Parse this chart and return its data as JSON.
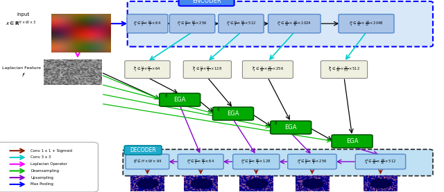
{
  "fig_width": 6.4,
  "fig_height": 2.78,
  "dpi": 100,
  "bg_color": "#ffffff",
  "encoder_box_color": "#aac4e8",
  "encoder_border_color": "#0000ff",
  "ega_color": "#00aa00",
  "decoder_box_color": "#aad4f0",
  "conv1x1_color": "#8b1a00",
  "conv3x3_color": "#00cccc",
  "laplacian_color": "#ff00ff",
  "downsampling_color": "#00bb00",
  "upsampling_color": "#8800cc",
  "maxpooling_color": "#0000ff",
  "legend_items": [
    {
      "label": "Conv 1 x 1 + Sigmoid",
      "color": "#8b1a00"
    },
    {
      "label": "Conv 3 x 3",
      "color": "#00cccc"
    },
    {
      "label": "Laplacian Operator",
      "color": "#ff00ff"
    },
    {
      "label": "Downsampling",
      "color": "#00bb00"
    },
    {
      "label": "Upsampling",
      "color": "#8800cc"
    },
    {
      "label": "Max Pooling",
      "color": "#0000ff"
    }
  ]
}
